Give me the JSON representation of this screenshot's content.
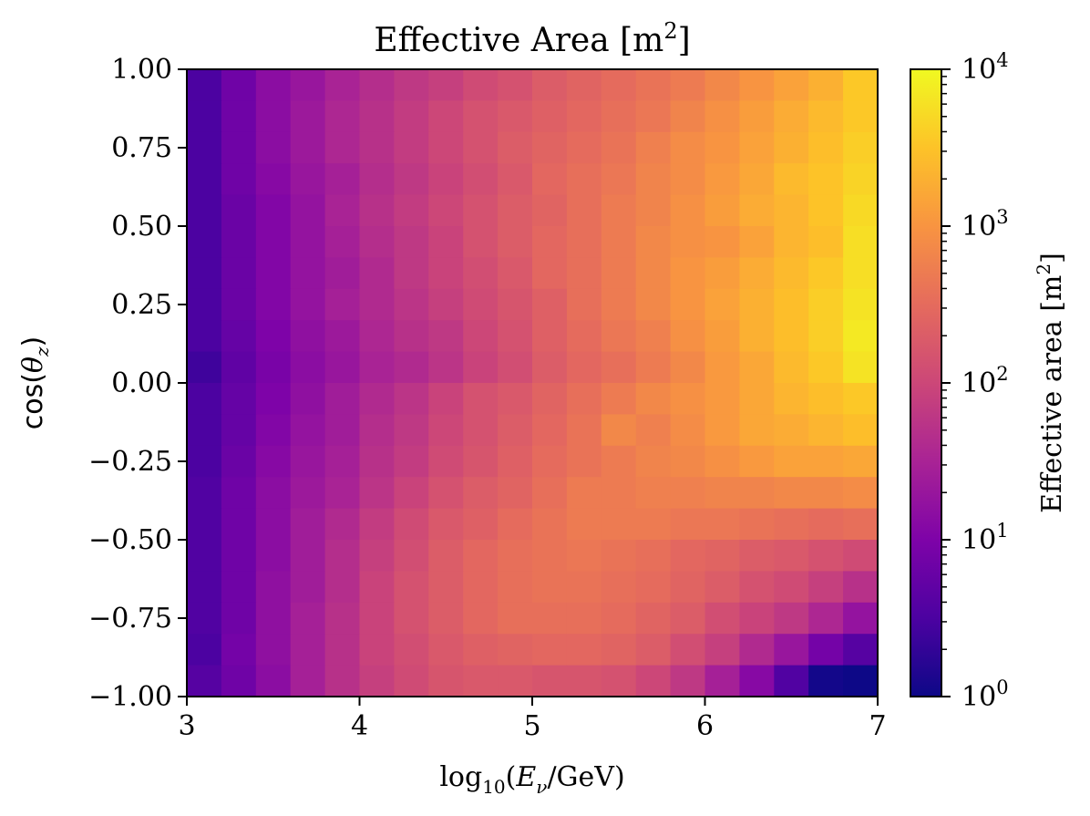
{
  "chart_data": {
    "type": "heatmap",
    "title_main": "Effective Area [m",
    "title_sup": "2",
    "title_close": "]",
    "xlabel": {
      "pre": "log",
      "sub10": "10",
      "open": "(",
      "E": "E",
      "nu": "ν",
      "rest": "/GeV)"
    },
    "ylabel": {
      "pre": "cos(",
      "theta": "θ",
      "z": "z",
      "post": ")"
    },
    "cbar_label": {
      "main": "Effective area [m",
      "sup": "2",
      "close": "]"
    },
    "xlim": [
      3,
      7
    ],
    "ylim": [
      -1,
      1
    ],
    "x_ticks": [
      "3",
      "4",
      "5",
      "6",
      "7"
    ],
    "y_ticks": [
      "1.00",
      "0.75",
      "0.50",
      "0.25",
      "0.00",
      "−0.25",
      "−0.50",
      "−0.75",
      "−1.00"
    ],
    "colorbar": {
      "scale": "log",
      "range": [
        1,
        10000
      ],
      "colormap": "plasma",
      "ticks": [
        {
          "base": "10",
          "exp": "4"
        },
        {
          "base": "10",
          "exp": "3"
        },
        {
          "base": "10",
          "exp": "2"
        },
        {
          "base": "10",
          "exp": "1"
        },
        {
          "base": "10",
          "exp": "0"
        }
      ]
    },
    "x_edges": [
      3.0,
      3.2,
      3.4,
      3.6,
      3.8,
      4.0,
      4.2,
      4.4,
      4.6,
      4.8,
      5.0,
      5.2,
      5.4,
      5.6,
      5.8,
      6.0,
      6.2,
      6.4,
      6.6,
      6.8,
      7.0
    ],
    "y_edges": [
      -1.0,
      -0.9,
      -0.8,
      -0.7,
      -0.6,
      -0.5,
      -0.4,
      -0.3,
      -0.2,
      -0.1,
      0.0,
      0.1,
      0.2,
      0.3,
      0.4,
      0.5,
      0.6,
      0.7,
      0.8,
      0.9,
      1.0
    ],
    "values_log10_rows_top_to_bottom": [
      [
        0.5,
        0.85,
        1.15,
        1.3,
        1.5,
        1.65,
        1.8,
        1.9,
        2.05,
        2.15,
        2.3,
        2.4,
        2.5,
        2.6,
        2.7,
        2.85,
        3.0,
        3.15,
        3.3,
        3.55
      ],
      [
        0.5,
        0.85,
        1.15,
        1.35,
        1.55,
        1.7,
        1.85,
        2.0,
        2.15,
        2.25,
        2.35,
        2.45,
        2.55,
        2.65,
        2.8,
        2.95,
        3.1,
        3.25,
        3.4,
        3.55
      ],
      [
        0.5,
        0.85,
        1.15,
        1.35,
        1.55,
        1.7,
        1.85,
        2.0,
        2.15,
        2.3,
        2.4,
        2.5,
        2.6,
        2.75,
        2.9,
        3.0,
        3.15,
        3.3,
        3.45,
        3.6
      ],
      [
        0.5,
        0.85,
        1.1,
        1.3,
        1.45,
        1.65,
        1.8,
        1.95,
        2.1,
        2.25,
        2.45,
        2.55,
        2.65,
        2.8,
        2.9,
        3.05,
        3.2,
        3.4,
        3.5,
        3.65
      ],
      [
        0.5,
        0.8,
        1.05,
        1.25,
        1.5,
        1.7,
        1.85,
        2.0,
        2.15,
        2.3,
        2.4,
        2.55,
        2.7,
        2.8,
        2.95,
        3.1,
        3.25,
        3.35,
        3.5,
        3.7
      ],
      [
        0.5,
        0.8,
        1.05,
        1.25,
        1.45,
        1.65,
        1.8,
        1.95,
        2.15,
        2.3,
        2.45,
        2.55,
        2.7,
        2.85,
        2.95,
        3.0,
        3.15,
        3.35,
        3.45,
        3.75
      ],
      [
        0.5,
        0.8,
        1.05,
        1.25,
        1.4,
        1.6,
        1.8,
        1.95,
        2.1,
        2.25,
        2.45,
        2.55,
        2.7,
        2.85,
        3.0,
        3.1,
        3.25,
        3.4,
        3.55,
        3.75
      ],
      [
        0.5,
        0.8,
        1.05,
        1.25,
        1.45,
        1.6,
        1.75,
        1.9,
        2.05,
        2.2,
        2.35,
        2.55,
        2.7,
        2.85,
        3.0,
        3.15,
        3.3,
        3.45,
        3.6,
        3.8
      ],
      [
        0.5,
        0.75,
        1.0,
        1.2,
        1.35,
        1.55,
        1.7,
        1.8,
        2.0,
        2.15,
        2.35,
        2.5,
        2.65,
        2.75,
        2.95,
        3.1,
        3.3,
        3.45,
        3.6,
        3.85
      ],
      [
        0.4,
        0.7,
        0.95,
        1.15,
        1.3,
        1.5,
        1.6,
        1.75,
        1.95,
        2.1,
        2.3,
        2.45,
        2.55,
        2.7,
        2.85,
        3.05,
        3.2,
        3.4,
        3.55,
        3.8
      ],
      [
        0.5,
        0.75,
        1.0,
        1.2,
        1.4,
        1.6,
        1.75,
        1.95,
        2.15,
        2.25,
        2.4,
        2.55,
        2.7,
        2.85,
        2.95,
        3.05,
        3.2,
        3.35,
        3.45,
        3.55
      ],
      [
        0.5,
        0.75,
        1.05,
        1.25,
        1.4,
        1.65,
        1.8,
        2.0,
        2.15,
        2.3,
        2.45,
        2.6,
        2.85,
        2.75,
        2.9,
        3.05,
        3.2,
        3.25,
        3.35,
        3.45
      ],
      [
        0.5,
        0.8,
        1.1,
        1.3,
        1.45,
        1.7,
        1.85,
        2.05,
        2.2,
        2.35,
        2.5,
        2.6,
        2.7,
        2.8,
        2.85,
        2.95,
        3.05,
        3.15,
        3.15,
        3.2
      ],
      [
        0.55,
        0.85,
        1.15,
        1.35,
        1.5,
        1.75,
        1.95,
        2.15,
        2.3,
        2.4,
        2.55,
        2.7,
        2.7,
        2.75,
        2.75,
        2.8,
        2.8,
        2.85,
        2.85,
        2.9
      ],
      [
        0.55,
        0.85,
        1.15,
        1.4,
        1.6,
        1.85,
        2.05,
        2.25,
        2.35,
        2.5,
        2.6,
        2.7,
        2.7,
        2.7,
        2.65,
        2.65,
        2.6,
        2.55,
        2.5,
        2.55
      ],
      [
        0.55,
        0.85,
        1.15,
        1.4,
        1.65,
        1.9,
        2.1,
        2.3,
        2.45,
        2.55,
        2.6,
        2.65,
        2.6,
        2.55,
        2.45,
        2.4,
        2.3,
        2.25,
        2.15,
        2.05
      ],
      [
        0.55,
        0.85,
        1.2,
        1.4,
        1.65,
        1.95,
        2.15,
        2.3,
        2.45,
        2.55,
        2.6,
        2.6,
        2.55,
        2.5,
        2.4,
        2.3,
        2.15,
        2.05,
        1.9,
        1.7
      ],
      [
        0.55,
        0.85,
        1.2,
        1.45,
        1.7,
        1.95,
        2.15,
        2.3,
        2.45,
        2.55,
        2.55,
        2.55,
        2.5,
        2.4,
        2.3,
        2.1,
        1.95,
        1.8,
        1.55,
        1.25
      ],
      [
        0.5,
        0.9,
        1.2,
        1.45,
        1.7,
        1.95,
        2.1,
        2.25,
        2.35,
        2.4,
        2.45,
        2.45,
        2.4,
        2.3,
        2.1,
        1.9,
        1.6,
        1.3,
        0.9,
        0.6
      ],
      [
        0.6,
        0.85,
        1.15,
        1.45,
        1.7,
        1.9,
        2.05,
        2.2,
        2.25,
        2.25,
        2.2,
        2.2,
        2.15,
        2.0,
        1.8,
        1.45,
        1.1,
        0.55,
        0.05,
        0.0
      ]
    ]
  }
}
